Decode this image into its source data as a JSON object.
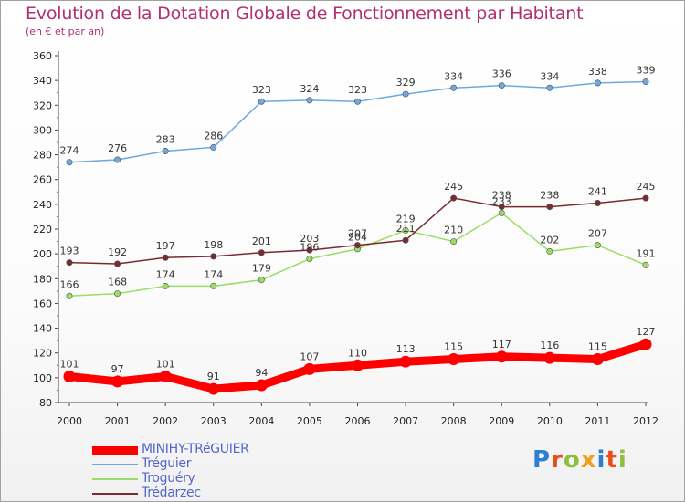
{
  "title": "Evolution de la Dotation Globale de Fonctionnement par Habitant",
  "subtitle": "(en € et par an)",
  "logo": {
    "text": "Proxiti",
    "colors": [
      "#2f7fd0",
      "#e94e1b",
      "#8fbf3f",
      "#f0a020",
      "#2f7fd0",
      "#e94e1b",
      "#8fbf3f"
    ]
  },
  "chart_data": {
    "type": "line",
    "x": [
      "2000",
      "2001",
      "2002",
      "2003",
      "2004",
      "2005",
      "2006",
      "2007",
      "2008",
      "2009",
      "2010",
      "2011",
      "2012"
    ],
    "yticks": [
      80,
      100,
      120,
      140,
      160,
      180,
      200,
      220,
      240,
      260,
      280,
      300,
      320,
      340,
      360
    ],
    "ylim": [
      80,
      360
    ],
    "grid": false,
    "legend_position": "bottom",
    "series": [
      {
        "name": "MINIHY-TRéGUIER",
        "color": "#ff0000",
        "width": "thick",
        "values": [
          101,
          97,
          101,
          91,
          94,
          107,
          110,
          113,
          115,
          117,
          116,
          115,
          127
        ]
      },
      {
        "name": "Tréguier",
        "color": "#6fa8dc",
        "values": [
          274,
          276,
          283,
          286,
          323,
          324,
          323,
          329,
          334,
          336,
          334,
          338,
          339
        ]
      },
      {
        "name": "Troguéry",
        "color": "#99dd66",
        "values": [
          166,
          168,
          174,
          174,
          179,
          196,
          204,
          219,
          210,
          233,
          202,
          207,
          191
        ]
      },
      {
        "name": "Trédarzec",
        "color": "#7a2a32",
        "values": [
          193,
          192,
          197,
          198,
          201,
          203,
          207,
          211,
          245,
          238,
          238,
          241,
          245
        ]
      }
    ]
  }
}
